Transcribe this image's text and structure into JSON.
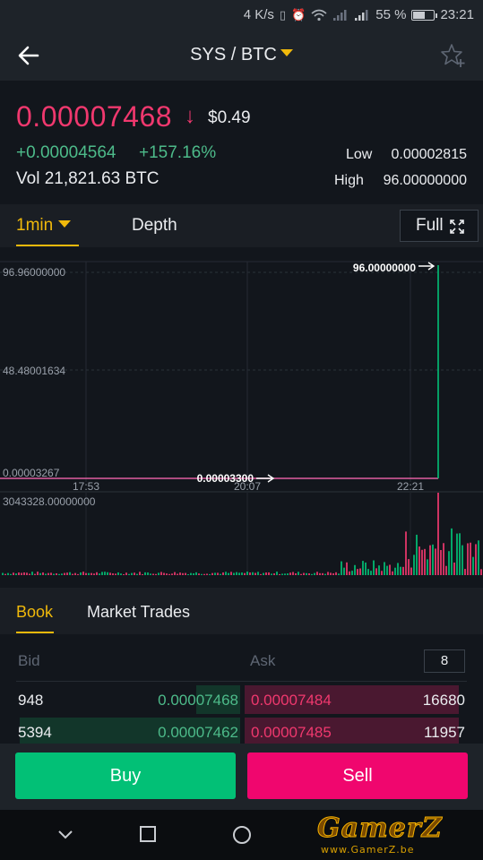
{
  "status_bar": {
    "speed": "4 K/s",
    "battery": "55 %",
    "battery_level": 0.55,
    "time": "23:21",
    "icons": [
      "vibrate-icon",
      "alarm-icon",
      "wifi-icon",
      "signal-icon",
      "signal-icon",
      "battery-icon"
    ]
  },
  "header": {
    "pair": "SYS / BTC",
    "icons": {
      "back": "arrow-left-icon",
      "favorite": "star-plus-icon",
      "pair_menu": "caret-down-icon"
    }
  },
  "ticker": {
    "last_price": "0.00007468",
    "direction_icon": "arrow-down-icon",
    "usd_price": "$0.49",
    "change": "+0.00004564",
    "change_pct": "+157.16%",
    "volume": "Vol 21,821.63 BTC",
    "low_label": "Low",
    "low": "0.00002815",
    "high_label": "High",
    "high": "96.00000000"
  },
  "chart_tabs": {
    "interval": "1min",
    "depth": "Depth",
    "full": "Full",
    "full_icon": "expand-icon"
  },
  "chart_data": {
    "type": "line",
    "y_ticks": [
      "96.96000000",
      "48.48001634",
      "0.00003267"
    ],
    "x_ticks": [
      "17:53",
      "20:07",
      "22:21"
    ],
    "max_marker": "96.00000000",
    "last_marker": "0.00003300",
    "volume_max_label": "3043328.00000000",
    "colors": {
      "up": "#02c076",
      "down": "#f0386e",
      "price_line": "#e05fa0"
    }
  },
  "book_tabs": {
    "book": "Book",
    "trades": "Market Trades"
  },
  "order_book": {
    "bid_header": "Bid",
    "ask_header": "Ask",
    "depth_value": "8",
    "rows": [
      {
        "bid_qty": "948",
        "bid_price": "0.00007468",
        "ask_price": "0.00007484",
        "ask_qty": "16680",
        "bid_depth": 0.2,
        "ask_depth": 0.97
      },
      {
        "bid_qty": "5394",
        "bid_price": "0.00007462",
        "ask_price": "0.00007485",
        "ask_qty": "11957",
        "bid_depth": 1.0,
        "ask_depth": 0.97
      }
    ]
  },
  "actions": {
    "buy": "Buy",
    "sell": "Sell"
  },
  "nav": {
    "back": "chevron-down-icon",
    "recents": "square-icon",
    "home": "circle-icon"
  },
  "watermark": {
    "brand": "GamerZ",
    "url": "www.GamerZ.be"
  }
}
